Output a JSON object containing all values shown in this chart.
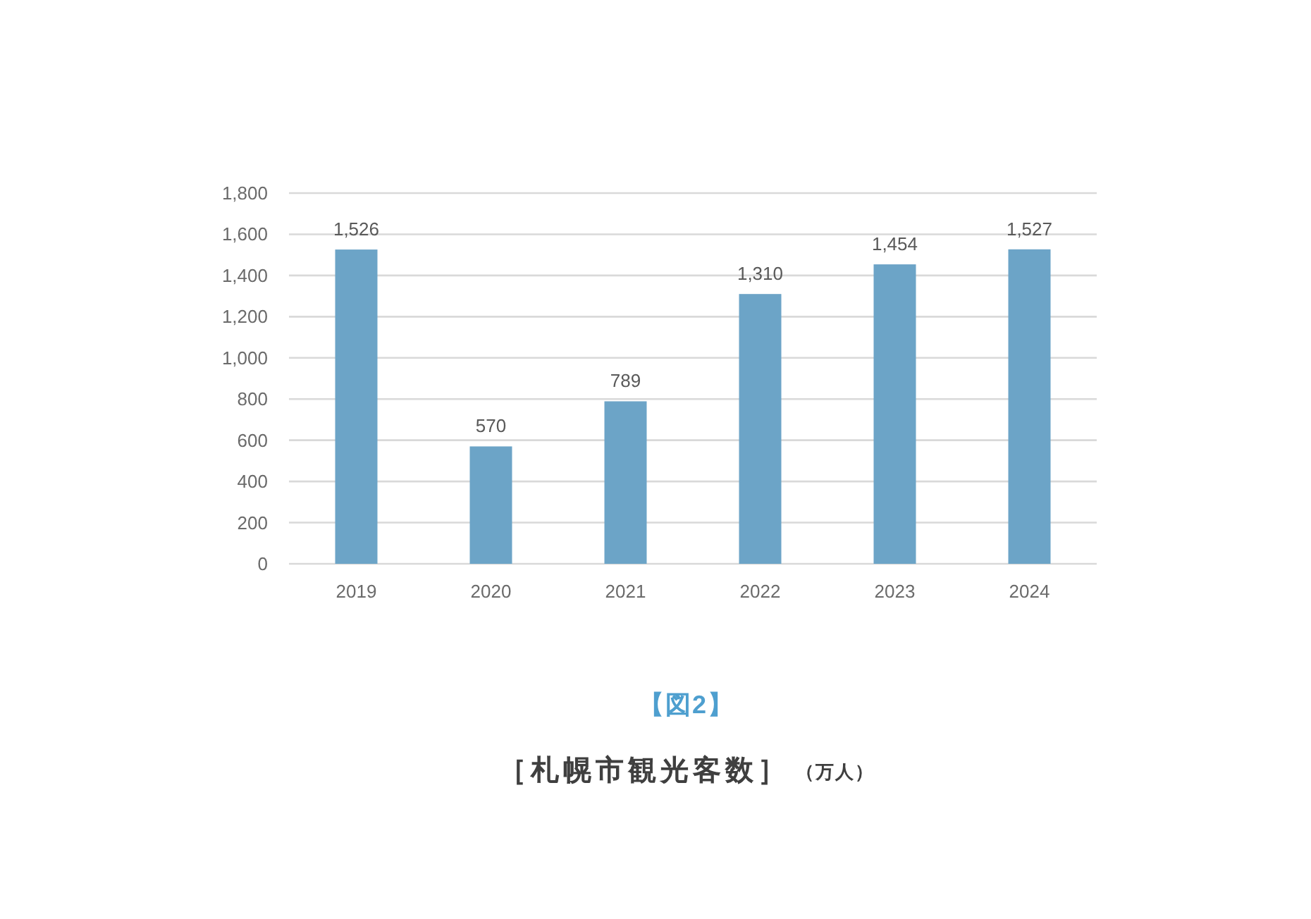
{
  "chart_data": {
    "type": "bar",
    "title": "【図2】",
    "subtitle": "［札幌市観光客数］",
    "annotations": [
      "（万人）"
    ],
    "categories": [
      "2019",
      "2020",
      "2021",
      "2022",
      "2023",
      "2024"
    ],
    "values": [
      1526,
      570,
      789,
      1310,
      1454,
      1527
    ],
    "color": "#6ca4c7",
    "value_labels": [
      "1,526",
      "570",
      "789",
      "1,310",
      "1,454",
      "1,527"
    ],
    "ylim": [
      0,
      1800
    ],
    "yticks": [
      0,
      200,
      400,
      600,
      800,
      {
        "value": 1000,
        "label": "1,000"
      },
      {
        "value": 1200,
        "label": "1,200"
      },
      {
        "value": 1400,
        "label": "1,400"
      },
      {
        "value": 1600,
        "label": "1,600"
      },
      {
        "value": 1800,
        "label": "1,800"
      }
    ],
    "grid": "y"
  }
}
